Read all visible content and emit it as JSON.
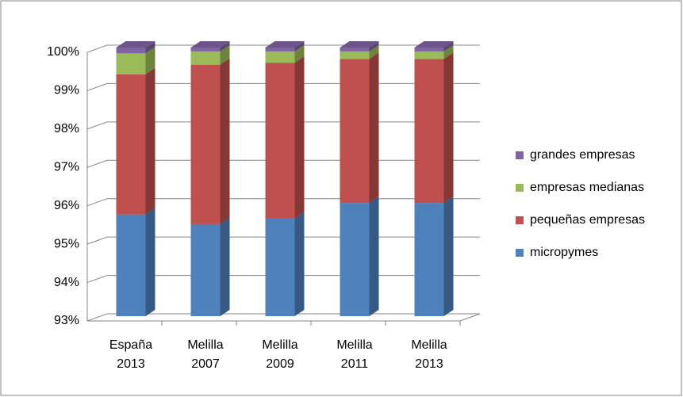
{
  "chart_data": {
    "type": "stacked-bar-3d",
    "categories": [
      "España 2013",
      "Melilla 2007",
      "Melilla 2009",
      "Melilla 2011",
      "Melilla 2013"
    ],
    "series": [
      {
        "name": "micropymes",
        "color": "#4f81bd",
        "values": [
          95.65,
          95.4,
          95.55,
          95.95,
          95.95
        ]
      },
      {
        "name": "pequeñas empresas",
        "color": "#c0504d",
        "values": [
          3.65,
          4.15,
          4.05,
          3.75,
          3.75
        ]
      },
      {
        "name": "empresas medianas",
        "color": "#9bbb59",
        "values": [
          0.55,
          0.35,
          0.3,
          0.2,
          0.2
        ]
      },
      {
        "name": "grandes empresas",
        "color": "#8064a2",
        "values": [
          0.15,
          0.1,
          0.1,
          0.1,
          0.1
        ]
      }
    ],
    "ylim": [
      93,
      100
    ],
    "yticks": [
      {
        "value": 93,
        "label": "93%"
      },
      {
        "value": 94,
        "label": "94%"
      },
      {
        "value": 95,
        "label": "95%"
      },
      {
        "value": 96,
        "label": "96%"
      },
      {
        "value": 97,
        "label": "97%"
      },
      {
        "value": 98,
        "label": "98%"
      },
      {
        "value": 99,
        "label": "99%"
      },
      {
        "value": 100,
        "label": "100%"
      }
    ],
    "grid": true,
    "legend": "right"
  }
}
